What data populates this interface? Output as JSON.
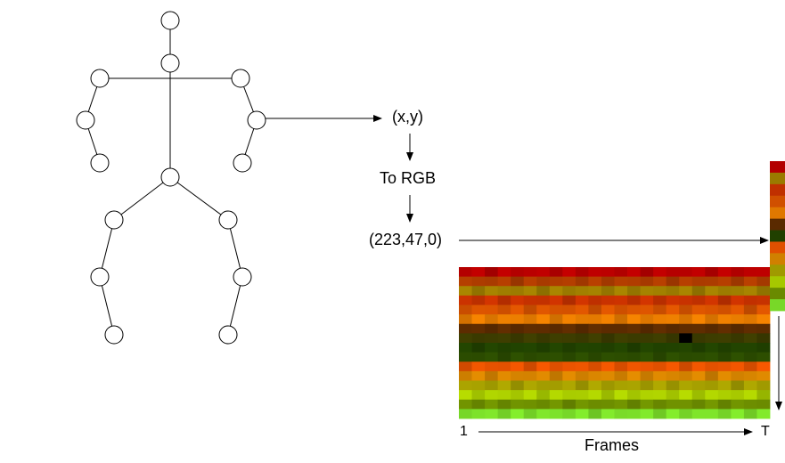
{
  "labels": {
    "coordinate": "(x,y)",
    "conversion": "To RGB",
    "rgb_value": "(223,47,0)",
    "frames_start": "1",
    "frames_end": "T",
    "frames_axis": "Frames"
  },
  "skeleton": {
    "joints": [
      "head",
      "neck",
      "right-shoulder",
      "left-shoulder",
      "right-elbow",
      "left-elbow",
      "right-hand",
      "left-hand",
      "hip",
      "right-hip",
      "left-hip",
      "right-knee",
      "left-knee",
      "right-foot",
      "left-foot"
    ]
  },
  "heatmap": {
    "rows": 16,
    "cols": 24,
    "row_colors": [
      "#b30000",
      "#a83a00",
      "#9a7a00",
      "#c03000",
      "#d05000",
      "#e07800",
      "#5a2a00",
      "#3a3a00",
      "#204000",
      "#2a4a00",
      "#e05000",
      "#d08000",
      "#a09a00",
      "#a6c800",
      "#6a8a00",
      "#78d828"
    ],
    "highlight_cell": {
      "row": 7,
      "col": 17,
      "color": "#000000"
    }
  },
  "column_strip": {
    "colors": [
      "#b30000",
      "#9a7a00",
      "#c03000",
      "#d05000",
      "#e07800",
      "#5a2a00",
      "#204000",
      "#e05000",
      "#d08000",
      "#a09a00",
      "#a6c800",
      "#6a8a00",
      "#78d828"
    ]
  }
}
